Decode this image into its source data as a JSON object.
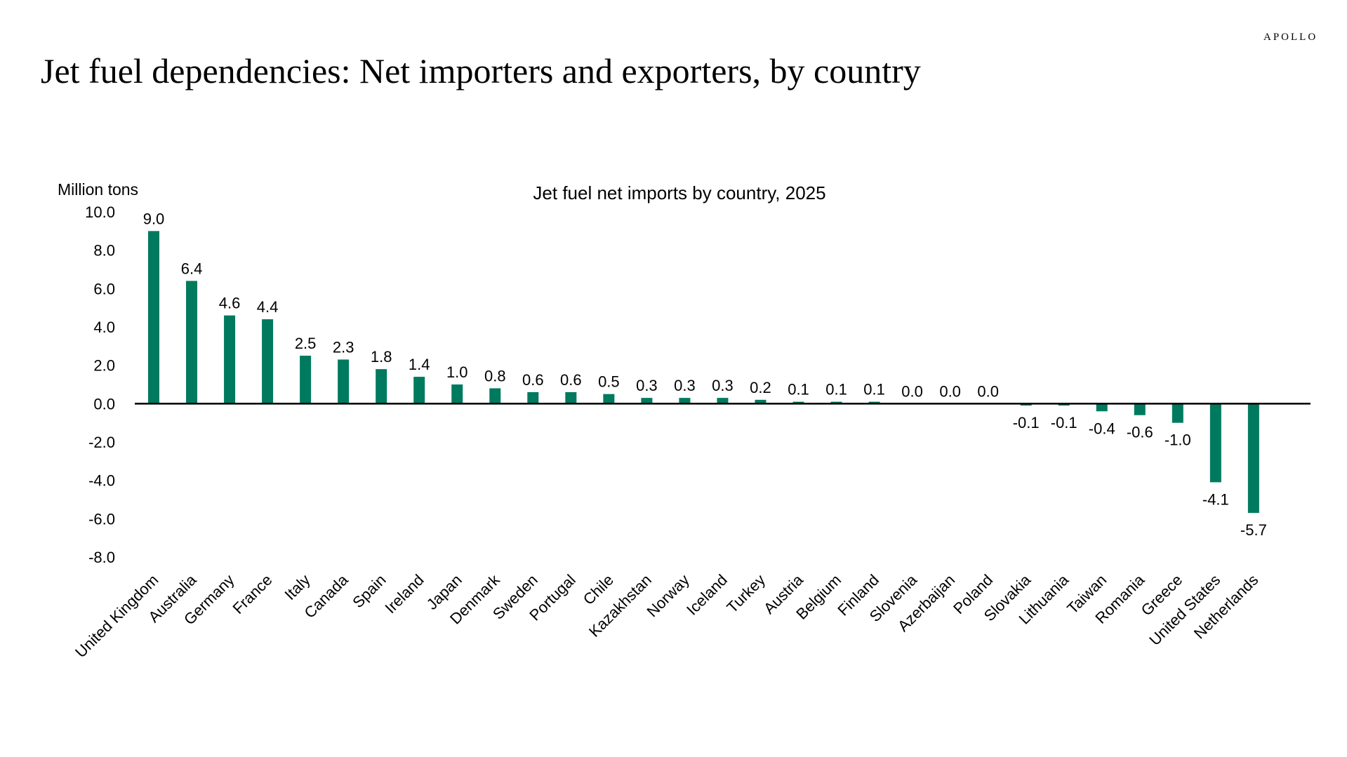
{
  "header": {
    "title": "Jet fuel dependencies: Net importers and exporters, by country",
    "brand": "APOLLO"
  },
  "colors": {
    "bar": "#007A5E",
    "axis": "#000000"
  },
  "chart_data": {
    "type": "bar",
    "title": "Jet fuel net imports by country, 2025",
    "ylabel": "Million tons",
    "xlabel": "",
    "ylim": [
      -8,
      10
    ],
    "yticks": [
      "10.0",
      "8.0",
      "6.0",
      "4.0",
      "2.0",
      "0.0",
      "-2.0",
      "-4.0",
      "-6.0",
      "-8.0"
    ],
    "ytick_values": [
      10,
      8,
      6,
      4,
      2,
      0,
      -2,
      -4,
      -6,
      -8
    ],
    "grid": false,
    "legend": "none",
    "categories": [
      "United Kingdom",
      "Australia",
      "Germany",
      "France",
      "Italy",
      "Canada",
      "Spain",
      "Ireland",
      "Japan",
      "Denmark",
      "Sweden",
      "Portugal",
      "Chile",
      "Kazakhstan",
      "Norway",
      "Iceland",
      "Turkey",
      "Austria",
      "Belgium",
      "Finland",
      "Slovenia",
      "Azerbaijan",
      "Poland",
      "Slovakia",
      "Lithuania",
      "Taiwan",
      "Romania",
      "Greece",
      "United States",
      "Netherlands"
    ],
    "values": [
      9.0,
      6.4,
      4.6,
      4.4,
      2.5,
      2.3,
      1.8,
      1.4,
      1.0,
      0.8,
      0.6,
      0.6,
      0.5,
      0.3,
      0.3,
      0.3,
      0.2,
      0.1,
      0.1,
      0.1,
      0.0,
      0.0,
      0.0,
      -0.1,
      -0.1,
      -0.4,
      -0.6,
      -1.0,
      -4.1,
      -5.7
    ],
    "data_labels": [
      "9.0",
      "6.4",
      "4.6",
      "4.4",
      "2.5",
      "2.3",
      "1.8",
      "1.4",
      "1.0",
      "0.8",
      "0.6",
      "0.6",
      "0.5",
      "0.3",
      "0.3",
      "0.3",
      "0.2",
      "0.1",
      "0.1",
      "0.1",
      "0.0",
      "0.0",
      "0.0",
      "-0.1",
      "-0.1",
      "-0.4",
      "-0.6",
      "-1.0",
      "-4.1",
      "-5.7"
    ]
  }
}
